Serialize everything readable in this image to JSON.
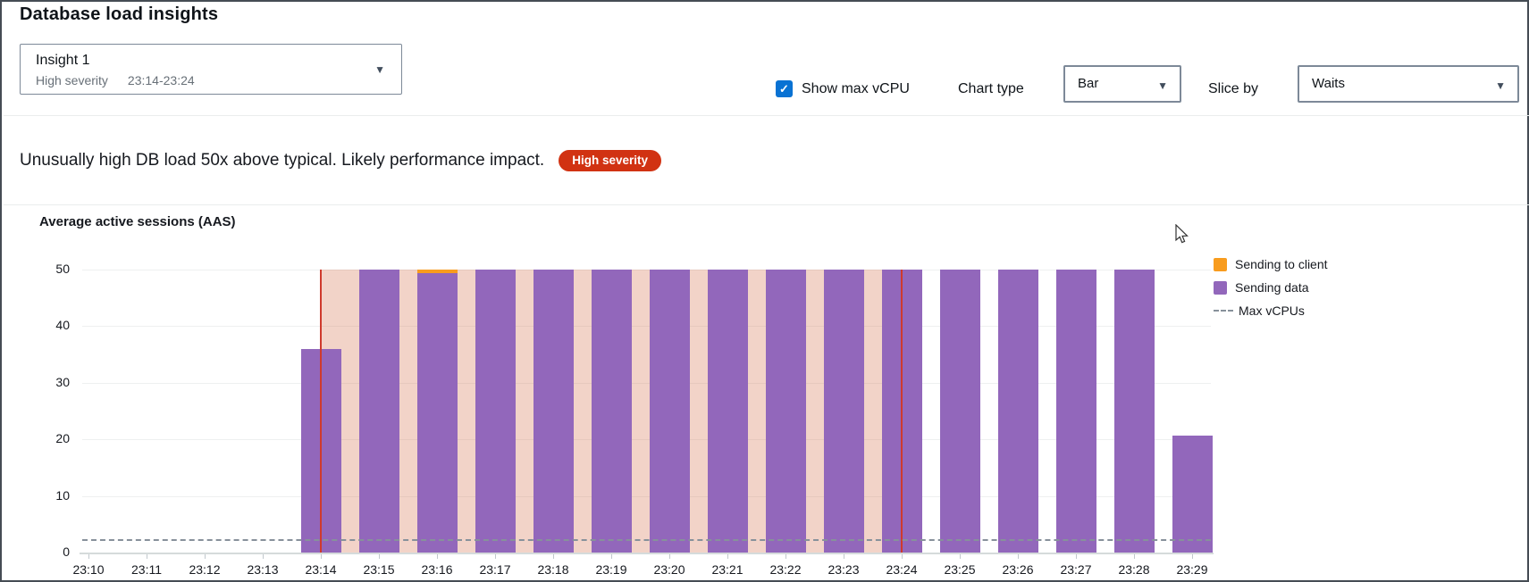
{
  "page": {
    "title": "Database load insights"
  },
  "insight_selector": {
    "title": "Insight 1",
    "severity": "High severity",
    "time_range": "23:14-23:24"
  },
  "controls": {
    "show_max_vcpu_label": "Show max vCPU",
    "show_max_vcpu_checked": true,
    "checkmark": "✓",
    "chart_type_label": "Chart type",
    "chart_type_value": "Bar",
    "slice_by_label": "Slice by",
    "slice_by_value": "Waits",
    "caret": "▼"
  },
  "alert": {
    "message": "Unusually high DB load 50x above typical. Likely performance impact.",
    "badge": "High severity",
    "badge_color": "#d13212"
  },
  "chart_data": {
    "type": "bar",
    "title": "Average active sessions (AAS)",
    "stacked": true,
    "x": [
      "23:10",
      "23:11",
      "23:12",
      "23:13",
      "23:14",
      "23:15",
      "23:16",
      "23:17",
      "23:18",
      "23:19",
      "23:20",
      "23:21",
      "23:22",
      "23:23",
      "23:24",
      "23:25",
      "23:26",
      "23:27",
      "23:28",
      "23:29"
    ],
    "series": [
      {
        "name": "Sending to client",
        "color": "#f89c1e",
        "values": [
          0,
          0,
          0,
          0,
          0,
          0,
          0.7,
          0,
          0,
          0,
          0,
          0,
          0,
          0,
          0,
          0,
          0,
          0,
          0,
          0
        ]
      },
      {
        "name": "Sending data",
        "color": "#9267bb",
        "values": [
          0,
          0,
          0,
          0,
          36,
          50,
          49.3,
          50,
          50,
          50,
          50,
          50,
          50,
          50,
          50,
          50,
          50,
          50,
          50,
          20.7
        ]
      }
    ],
    "max_vcpus": {
      "label": "Max vCPUs",
      "value": 2,
      "color": "#87919b"
    },
    "ylim": [
      0,
      50
    ],
    "yticks": [
      0,
      10,
      20,
      30,
      40,
      50
    ],
    "grid": true,
    "legend_position": "right",
    "highlight_range": {
      "start": "23:14",
      "end": "23:24",
      "fill": "rgba(217,122,89,0.33)",
      "edge_color": "#cf3a2d"
    }
  }
}
